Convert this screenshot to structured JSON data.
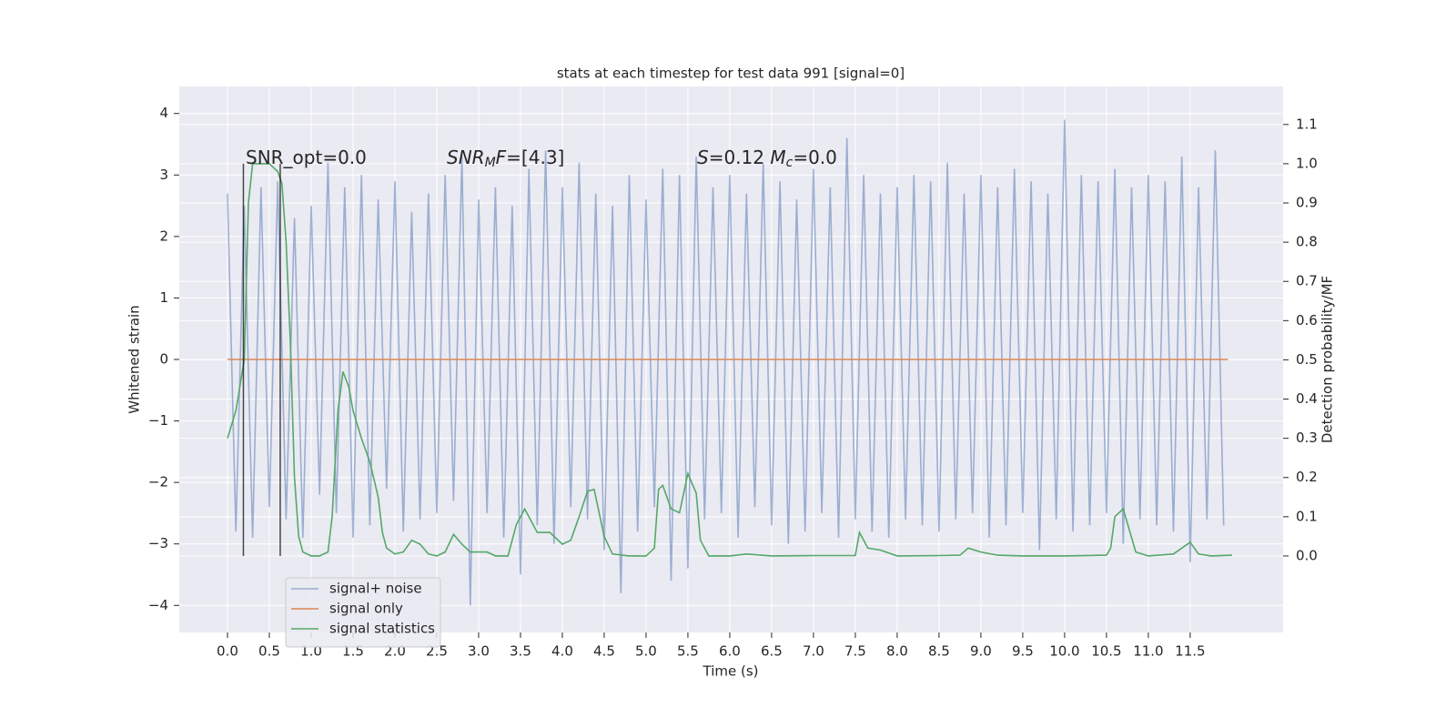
{
  "chart_data": {
    "type": "line",
    "title": "stats at each timestep for test data 991 [signal=0]",
    "xlabel": "Time (s)",
    "ylabel": "Whitened strain",
    "y2label": "Detection probability/MF",
    "xlim": [
      -0.576,
      12.61
    ],
    "ylim": [
      -4.44,
      4.44
    ],
    "y2lim": [
      -0.195,
      1.197
    ],
    "xticks": [
      {
        "value": 0,
        "label": "0.0"
      },
      {
        "value": 0.5,
        "label": "0.5"
      },
      {
        "value": 1,
        "label": "1.0"
      },
      {
        "value": 1.5,
        "label": "1.5"
      },
      {
        "value": 2,
        "label": "2.0"
      },
      {
        "value": 2.5,
        "label": "2.5"
      },
      {
        "value": 3,
        "label": "3.0"
      },
      {
        "value": 3.5,
        "label": "3.5"
      },
      {
        "value": 4,
        "label": "4.0"
      },
      {
        "value": 4.5,
        "label": "4.5"
      },
      {
        "value": 5,
        "label": "5.0"
      },
      {
        "value": 5.5,
        "label": "5.5"
      },
      {
        "value": 6,
        "label": "6.0"
      },
      {
        "value": 6.5,
        "label": "6.5"
      },
      {
        "value": 7,
        "label": "7.0"
      },
      {
        "value": 7.5,
        "label": "7.5"
      },
      {
        "value": 8,
        "label": "8.0"
      },
      {
        "value": 8.5,
        "label": "8.5"
      },
      {
        "value": 9,
        "label": "9.0"
      },
      {
        "value": 9.5,
        "label": "9.5"
      },
      {
        "value": 10,
        "label": "10.0"
      },
      {
        "value": 10.5,
        "label": "10.5"
      },
      {
        "value": 11,
        "label": "11.0"
      },
      {
        "value": 11.5,
        "label": "11.5"
      }
    ],
    "yticks": [
      {
        "value": -4,
        "label": "−4"
      },
      {
        "value": -3,
        "label": "−3"
      },
      {
        "value": -2,
        "label": "−2"
      },
      {
        "value": -1,
        "label": "−1"
      },
      0,
      1,
      2,
      3,
      4
    ],
    "y2ticks": [
      {
        "value": 0,
        "label": "0.0"
      },
      {
        "value": 0.1,
        "label": "0.1"
      },
      {
        "value": 0.2,
        "label": "0.2"
      },
      {
        "value": 0.3,
        "label": "0.3"
      },
      {
        "value": 0.4,
        "label": "0.4"
      },
      {
        "value": 0.5,
        "label": "0.5"
      },
      {
        "value": 0.6,
        "label": "0.6"
      },
      {
        "value": 0.7,
        "label": "0.7"
      },
      {
        "value": 0.8,
        "label": "0.8"
      },
      {
        "value": 0.9,
        "label": "0.9"
      },
      {
        "value": 1.0,
        "label": "1.0"
      },
      {
        "value": 1.1,
        "label": "1.1"
      }
    ],
    "grid": true,
    "legend": "lower left",
    "series": [
      {
        "name": "signal+ noise",
        "color": "#4c72b0",
        "opacity": 0.5,
        "x": [
          0,
          0.1,
          0.2,
          0.3,
          0.4,
          0.5,
          0.6,
          0.7,
          0.8,
          0.9,
          1,
          1.1,
          1.2,
          1.3,
          1.4,
          1.5,
          1.6,
          1.7,
          1.8,
          1.9,
          2,
          2.1,
          2.2,
          2.3,
          2.4,
          2.5,
          2.6,
          2.7,
          2.8,
          2.9,
          3,
          3.1,
          3.2,
          3.3,
          3.4,
          3.5,
          3.6,
          3.7,
          3.8,
          3.9,
          4,
          4.1,
          4.2,
          4.3,
          4.4,
          4.5,
          4.6,
          4.7,
          4.8,
          4.9,
          5,
          5.1,
          5.2,
          5.3,
          5.4,
          5.5,
          5.6,
          5.7,
          5.8,
          5.9,
          6,
          6.1,
          6.2,
          6.3,
          6.4,
          6.5,
          6.6,
          6.7,
          6.8,
          6.9,
          7,
          7.1,
          7.2,
          7.3,
          7.4,
          7.5,
          7.6,
          7.7,
          7.8,
          7.9,
          8,
          8.1,
          8.2,
          8.3,
          8.4,
          8.5,
          8.6,
          8.7,
          8.8,
          8.9,
          9,
          9.1,
          9.2,
          9.3,
          9.4,
          9.5,
          9.6,
          9.7,
          9.8,
          9.9,
          10,
          10.1,
          10.2,
          10.3,
          10.4,
          10.5,
          10.6,
          10.7,
          10.8,
          10.9,
          11,
          11.1,
          11.2,
          11.3,
          11.4,
          11.5,
          11.6,
          11.7,
          11.8,
          11.9
        ],
        "values": [
          2.7,
          -2.8,
          2.5,
          -2.9,
          2.8,
          -2.4,
          2.9,
          -2.6,
          2.3,
          -2.9,
          2.5,
          -2.2,
          3.2,
          -2.5,
          2.8,
          -2.9,
          3.0,
          -2.7,
          2.6,
          -2.1,
          2.9,
          -2.8,
          2.4,
          -2.6,
          2.7,
          -2.5,
          3.0,
          -2.3,
          3.3,
          -4.0,
          2.6,
          -2.5,
          2.8,
          -2.9,
          2.5,
          -3.5,
          3.1,
          -2.7,
          3.4,
          -3.0,
          2.8,
          -2.4,
          3.2,
          -2.6,
          2.7,
          -3.1,
          2.5,
          -3.8,
          3.0,
          -2.8,
          2.6,
          -2.4,
          3.1,
          -3.6,
          3.0,
          -3.4,
          3.3,
          -2.6,
          2.8,
          -2.5,
          3.0,
          -2.9,
          2.7,
          -2.4,
          3.2,
          -2.7,
          2.9,
          -3.0,
          2.6,
          -2.8,
          3.1,
          -2.5,
          2.8,
          -2.9,
          3.6,
          -2.6,
          3.0,
          -2.8,
          2.7,
          -2.9,
          2.8,
          -2.6,
          3.0,
          -2.7,
          2.9,
          -2.8,
          3.2,
          -2.6,
          2.7,
          -2.5,
          3.0,
          -2.9,
          2.8,
          -2.7,
          3.1,
          -2.5,
          2.9,
          -3.1,
          2.7,
          -2.6,
          3.9,
          -2.8,
          3.0,
          -2.7,
          2.9,
          -2.5,
          3.1,
          -3.0,
          2.8,
          -2.6,
          3.0,
          -2.7,
          2.9,
          -2.8,
          3.3,
          -3.3,
          2.8,
          -2.6,
          3.4,
          -2.7
        ]
      },
      {
        "name": "signal only",
        "color": "#dd8452",
        "x": [
          0,
          11.95
        ],
        "values": [
          0,
          0
        ]
      },
      {
        "name": "signal statistics",
        "color": "#55a868",
        "axis": "y2",
        "x": [
          0,
          0.1,
          0.2,
          0.25,
          0.3,
          0.4,
          0.5,
          0.6,
          0.65,
          0.7,
          0.75,
          0.8,
          0.85,
          0.9,
          1.0,
          1.1,
          1.2,
          1.25,
          1.32,
          1.38,
          1.45,
          1.5,
          1.6,
          1.7,
          1.8,
          1.85,
          1.9,
          2.0,
          2.1,
          2.2,
          2.3,
          2.4,
          2.5,
          2.6,
          2.7,
          2.8,
          2.9,
          3.1,
          3.2,
          3.35,
          3.45,
          3.55,
          3.7,
          3.85,
          4.0,
          4.1,
          4.2,
          4.3,
          4.38,
          4.5,
          4.6,
          4.8,
          5.0,
          5.1,
          5.15,
          5.2,
          5.3,
          5.4,
          5.5,
          5.6,
          5.65,
          5.75,
          6.0,
          6.2,
          6.5,
          7.0,
          7.5,
          7.55,
          7.65,
          7.8,
          8.0,
          8.5,
          8.75,
          8.85,
          9.0,
          9.2,
          9.5,
          10.0,
          10.5,
          10.55,
          10.6,
          10.7,
          10.85,
          11.0,
          11.3,
          11.4,
          11.5,
          11.6,
          11.75,
          12.0
        ],
        "values": [
          0.3,
          0.37,
          0.5,
          0.9,
          1.0,
          1.0,
          1.0,
          0.98,
          0.95,
          0.8,
          0.55,
          0.2,
          0.05,
          0.01,
          0.0,
          0.0,
          0.01,
          0.1,
          0.37,
          0.47,
          0.43,
          0.37,
          0.3,
          0.24,
          0.15,
          0.06,
          0.02,
          0.005,
          0.01,
          0.04,
          0.03,
          0.005,
          0.0,
          0.01,
          0.055,
          0.03,
          0.01,
          0.01,
          0.0,
          0.0,
          0.08,
          0.12,
          0.06,
          0.06,
          0.03,
          0.04,
          0.1,
          0.165,
          0.17,
          0.05,
          0.005,
          0.0,
          0.0,
          0.02,
          0.17,
          0.18,
          0.12,
          0.11,
          0.21,
          0.16,
          0.04,
          0.0,
          0.0,
          0.005,
          0.0,
          0.001,
          0.001,
          0.06,
          0.02,
          0.015,
          0.0,
          0.001,
          0.002,
          0.02,
          0.01,
          0.002,
          0.0,
          0.0,
          0.002,
          0.02,
          0.1,
          0.12,
          0.01,
          0.0,
          0.005,
          0.02,
          0.035,
          0.005,
          0.0,
          0.002
        ]
      }
    ],
    "vlines": [
      {
        "x": 0.19,
        "y2": [
          0,
          1.0
        ],
        "color": "#000000"
      },
      {
        "x": 0.63,
        "y2": [
          0,
          1.0
        ],
        "color": "#000000"
      }
    ],
    "annotations": [
      [
        {
          "t": "SNR_opt=0.0"
        }
      ],
      [
        {
          "t": "SNR",
          "style": "italic"
        },
        {
          "t": "M",
          "style": "sub"
        },
        {
          "t": "F",
          "style": "italic"
        },
        {
          "t": "=[4.3]"
        }
      ],
      [
        {
          "t": "S",
          "style": "italic"
        },
        {
          "t": "=0.12   "
        },
        {
          "t": "M",
          "style": "italic"
        },
        {
          "t": "c",
          "style": "sub"
        },
        {
          "t": "=0.0"
        }
      ]
    ]
  }
}
